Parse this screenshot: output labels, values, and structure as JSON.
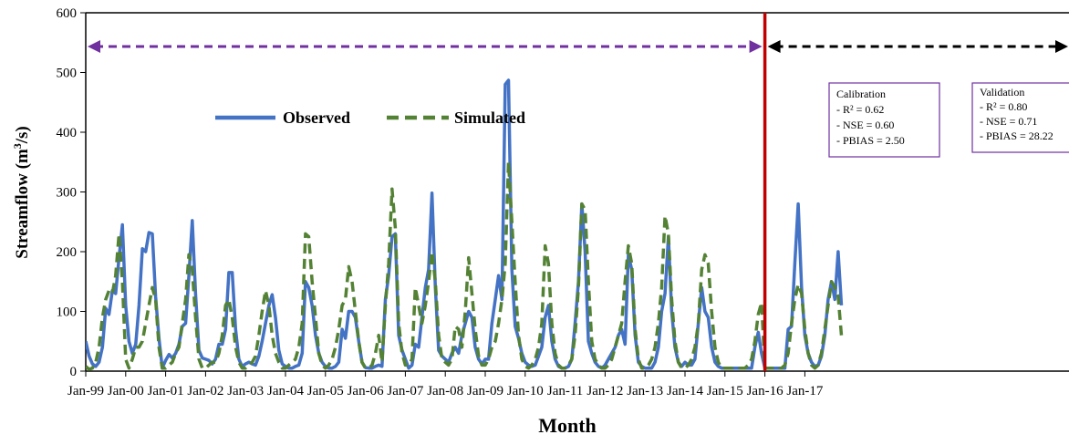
{
  "chart_data": {
    "type": "line",
    "xlabel": "Month",
    "ylabel": "Streamflow (m³/s)",
    "ylabel_parts": {
      "base": "Streamflow (m",
      "exp": "3",
      "tail": "/s)"
    },
    "ylim": [
      0,
      600
    ],
    "y_ticks": [
      "0",
      "100",
      "200",
      "300",
      "400",
      "500",
      "600"
    ],
    "x_tick_labels": [
      "Jan-99",
      "Jan-00",
      "Jan-01",
      "Jan-02",
      "Jan-03",
      "Jan-04",
      "Jan-05",
      "Jan-06",
      "Jan-07",
      "Jan-08",
      "Jan-09",
      "Jan-10",
      "Jan-11",
      "Jan-12",
      "Jan-13",
      "Jan-14",
      "Jan-15",
      "Jan-16",
      "Jan-17"
    ],
    "x_range": [
      "Jan-99",
      "Dec-17"
    ],
    "grid": false,
    "legend_placement": "upper-left, inside plot",
    "series": [
      {
        "name": "Observed",
        "color": "#4472C4",
        "style": "solid",
        "values": [
          50,
          25,
          12,
          8,
          15,
          40,
          105,
          95,
          135,
          130,
          190,
          245,
          110,
          50,
          30,
          45,
          110,
          205,
          200,
          232,
          230,
          125,
          55,
          5,
          18,
          28,
          22,
          30,
          45,
          75,
          80,
          160,
          252,
          130,
          35,
          22,
          20,
          18,
          12,
          20,
          45,
          45,
          70,
          165,
          165,
          70,
          20,
          8,
          12,
          15,
          12,
          10,
          25,
          50,
          80,
          110,
          128,
          90,
          35,
          12,
          8,
          5,
          5,
          8,
          10,
          30,
          150,
          140,
          110,
          60,
          30,
          15,
          8,
          5,
          5,
          8,
          15,
          70,
          55,
          100,
          100,
          90,
          50,
          15,
          6,
          5,
          5,
          8,
          10,
          8,
          120,
          160,
          225,
          230,
          60,
          35,
          20,
          5,
          10,
          45,
          40,
          90,
          140,
          170,
          298,
          140,
          35,
          25,
          20,
          15,
          30,
          40,
          30,
          60,
          80,
          100,
          90,
          40,
          20,
          12,
          20,
          20,
          80,
          120,
          160,
          120,
          480,
          487,
          170,
          75,
          55,
          30,
          15,
          10,
          8,
          10,
          25,
          40,
          90,
          110,
          50,
          20,
          8,
          5,
          5,
          8,
          20,
          80,
          150,
          280,
          200,
          50,
          30,
          15,
          8,
          5,
          10,
          20,
          30,
          40,
          60,
          70,
          45,
          195,
          170,
          60,
          15,
          8,
          5,
          5,
          5,
          15,
          40,
          100,
          130,
          225,
          100,
          40,
          15,
          8,
          15,
          10,
          10,
          20,
          80,
          140,
          100,
          90,
          40,
          15,
          8,
          5,
          5,
          5,
          5,
          5,
          5,
          5,
          5,
          5,
          5,
          40,
          65,
          30,
          5,
          5,
          5,
          5,
          5,
          5,
          5,
          70,
          75,
          180,
          280,
          140,
          60,
          30,
          15,
          8,
          10,
          25,
          60,
          120,
          150,
          120,
          200,
          110
        ]
      },
      {
        "name": "Simulated",
        "color": "#548235",
        "style": "dashed",
        "values": [
          8,
          3,
          5,
          15,
          40,
          90,
          120,
          135,
          130,
          160,
          230,
          150,
          20,
          5,
          20,
          40,
          40,
          50,
          80,
          110,
          140,
          120,
          40,
          5,
          5,
          10,
          15,
          30,
          40,
          80,
          120,
          195,
          170,
          90,
          20,
          5,
          5,
          10,
          15,
          15,
          30,
          60,
          110,
          120,
          90,
          40,
          15,
          5,
          5,
          10,
          15,
          25,
          60,
          100,
          135,
          110,
          60,
          30,
          15,
          5,
          5,
          10,
          15,
          20,
          40,
          80,
          230,
          225,
          150,
          90,
          30,
          10,
          5,
          10,
          20,
          40,
          70,
          110,
          120,
          175,
          150,
          100,
          50,
          15,
          5,
          5,
          10,
          30,
          60,
          15,
          110,
          180,
          305,
          240,
          80,
          30,
          10,
          10,
          20,
          140,
          110,
          80,
          110,
          150,
          200,
          150,
          60,
          20,
          15,
          10,
          20,
          75,
          70,
          40,
          100,
          190,
          130,
          70,
          25,
          10,
          10,
          20,
          40,
          50,
          80,
          120,
          180,
          350,
          250,
          150,
          60,
          20,
          8,
          5,
          10,
          20,
          40,
          80,
          210,
          180,
          80,
          30,
          10,
          5,
          5,
          10,
          20,
          60,
          140,
          280,
          270,
          150,
          50,
          20,
          10,
          5,
          5,
          10,
          20,
          40,
          60,
          80,
          150,
          210,
          180,
          70,
          20,
          5,
          5,
          10,
          20,
          40,
          80,
          140,
          260,
          230,
          120,
          50,
          15,
          5,
          5,
          10,
          20,
          40,
          80,
          170,
          195,
          180,
          100,
          40,
          15,
          5,
          5,
          5,
          5,
          5,
          5,
          5,
          5,
          10,
          20,
          50,
          95,
          115,
          5,
          5,
          5,
          5,
          5,
          5,
          10,
          30,
          80,
          120,
          145,
          130,
          70,
          30,
          10,
          5,
          10,
          30,
          70,
          110,
          150,
          140,
          125,
          60
        ]
      }
    ],
    "periods": [
      {
        "name": "Calibration",
        "start": "Jan-99",
        "end": "Jan-16",
        "arrow_color": "#7030A0",
        "stats": [
          "- R² = 0.62",
          "- NSE = 0.60",
          "- PBIAS = 2.50"
        ]
      },
      {
        "name": "Validation",
        "start": "Jan-16",
        "end": "Dec-17",
        "arrow_color": "#000000",
        "stats": [
          "- R² = 0.80",
          "- NSE = 0.71",
          "- PBIAS = 28.22"
        ]
      }
    ],
    "divider": {
      "at": "Jan-16",
      "color": "#C00000"
    },
    "stats_box_border_color": "#7030A0"
  }
}
